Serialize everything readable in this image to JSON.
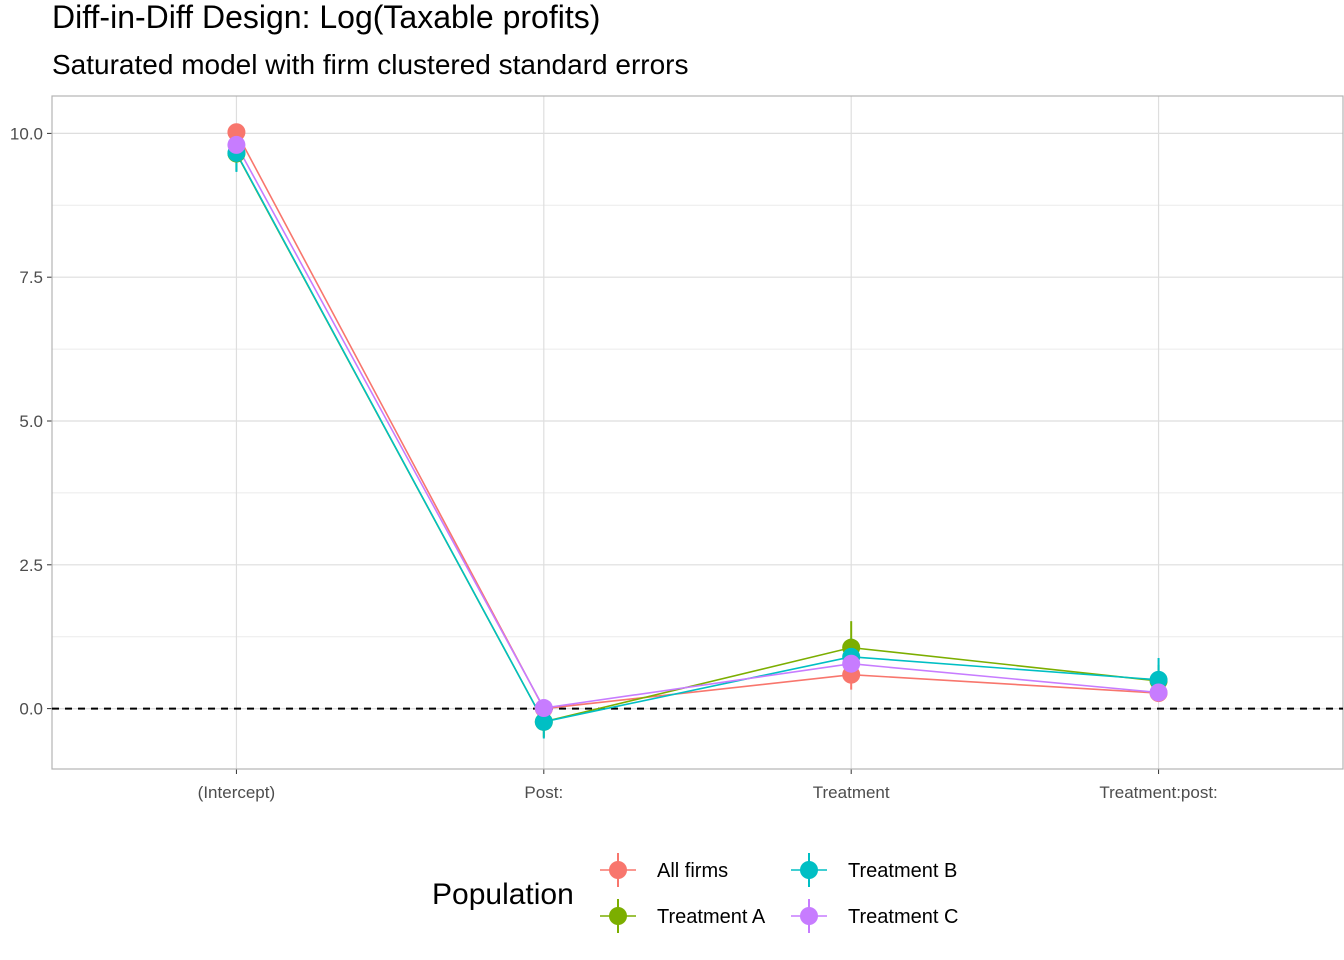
{
  "chart_data": {
    "type": "scatter",
    "title": "Diff-in-Diff Design: Log(Taxable profits)",
    "subtitle": "Saturated model with firm clustered standard errors",
    "xlabel": "",
    "ylabel": "",
    "categories": [
      "(Intercept)",
      "Post:",
      "Treatment",
      "Treatment:post:"
    ],
    "ylim": [
      -1.05,
      10.65
    ],
    "yticks": [
      0.0,
      2.5,
      5.0,
      7.5,
      10.0
    ],
    "ytick_labels": [
      "0.0",
      "2.5",
      "5.0",
      "7.5",
      "10.0"
    ],
    "reference_line": {
      "y": 0,
      "style": "dashed"
    },
    "grid": true,
    "legend": {
      "title": "Population",
      "position": "bottom"
    },
    "series": [
      {
        "name": "All firms",
        "color": "#F8766D",
        "values": [
          10.02,
          0.0,
          0.59,
          0.27
        ],
        "lower": [
          9.9,
          -0.1,
          0.33,
          0.15
        ],
        "upper": [
          10.14,
          0.1,
          0.85,
          0.39
        ]
      },
      {
        "name": "Treatment A",
        "color": "#7CAE00",
        "values": [
          9.65,
          -0.23,
          1.06,
          0.48
        ],
        "lower": [
          9.35,
          -0.5,
          0.6,
          0.2
        ],
        "upper": [
          9.95,
          0.04,
          1.52,
          0.76
        ]
      },
      {
        "name": "Treatment B",
        "color": "#00BFC4",
        "values": [
          9.66,
          -0.23,
          0.9,
          0.5
        ],
        "lower": [
          9.33,
          -0.52,
          0.58,
          0.12
        ],
        "upper": [
          9.99,
          0.06,
          1.22,
          0.88
        ]
      },
      {
        "name": "Treatment C",
        "color": "#C77CFF",
        "values": [
          9.8,
          0.01,
          0.78,
          0.28
        ],
        "lower": [
          9.6,
          -0.12,
          0.55,
          0.12
        ],
        "upper": [
          10.0,
          0.14,
          1.01,
          0.44
        ]
      }
    ]
  }
}
